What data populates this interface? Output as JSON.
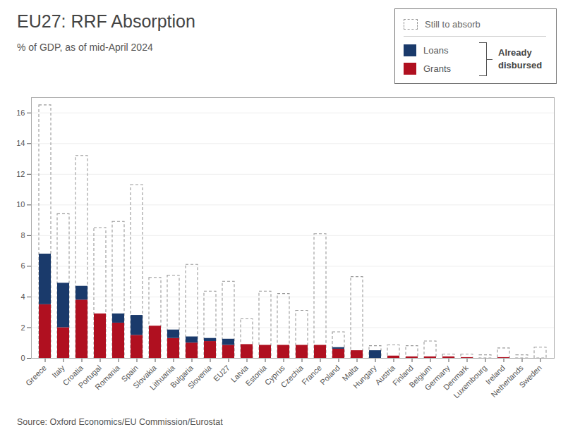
{
  "chart_data": {
    "type": "bar",
    "title": "EU27: RRF Absorption",
    "subtitle": "% of GDP, as of mid-April 2024",
    "source": "Source: Oxford Economics/EU Commission/Eurostat",
    "annotation": "Already\ndisbursed",
    "categories": [
      "Greece",
      "Italy",
      "Croatia",
      "Portugal",
      "Romania",
      "Spain",
      "Slovakia",
      "Lithuania",
      "Bulgaria",
      "Slovenia",
      "EU27",
      "Latvia",
      "Estonia",
      "Cyprus",
      "Czechia",
      "France",
      "Poland",
      "Malta",
      "Hungary",
      "Austria",
      "Finland",
      "Belgium",
      "Germany",
      "Denmark",
      "Luxembourg",
      "Ireland",
      "Netherlands",
      "Sweden"
    ],
    "series": [
      {
        "name": "Still to absorb",
        "type": "outline",
        "line_style": "dashed",
        "color": "#999999",
        "values": [
          16.5,
          9.4,
          13.2,
          8.5,
          8.9,
          11.3,
          5.25,
          5.4,
          6.1,
          4.35,
          5.0,
          2.55,
          4.35,
          4.2,
          3.1,
          8.1,
          1.7,
          5.3,
          0.8,
          0.85,
          0.8,
          1.1,
          0.25,
          0.25,
          0.2,
          0.65,
          0.2,
          0.7
        ]
      },
      {
        "name": "Grants",
        "type": "bar",
        "color": "#b01020",
        "values": [
          3.5,
          2.0,
          3.8,
          2.9,
          2.3,
          1.5,
          2.1,
          1.3,
          1.0,
          1.1,
          0.85,
          0.9,
          0.85,
          0.85,
          0.85,
          0.85,
          0.6,
          0.5,
          0.0,
          0.15,
          0.1,
          0.1,
          0.1,
          0.05,
          0.0,
          0.05,
          0.0,
          0.0
        ]
      },
      {
        "name": "Loans",
        "type": "bar",
        "color": "#1a3a6b",
        "values": [
          3.3,
          2.9,
          0.9,
          0.0,
          0.6,
          1.3,
          0.0,
          0.55,
          0.4,
          0.2,
          0.4,
          0.0,
          0.0,
          0.0,
          0.0,
          0.0,
          0.1,
          0.0,
          0.5,
          0.0,
          0.0,
          0.0,
          0.0,
          0.0,
          0.0,
          0.0,
          0.0,
          0.0
        ]
      }
    ],
    "stacked": true,
    "ylim": [
      0,
      17
    ],
    "yticks": [
      0,
      2,
      4,
      6,
      8,
      10,
      12,
      14,
      16
    ],
    "grid": true,
    "legend": "top-right"
  }
}
